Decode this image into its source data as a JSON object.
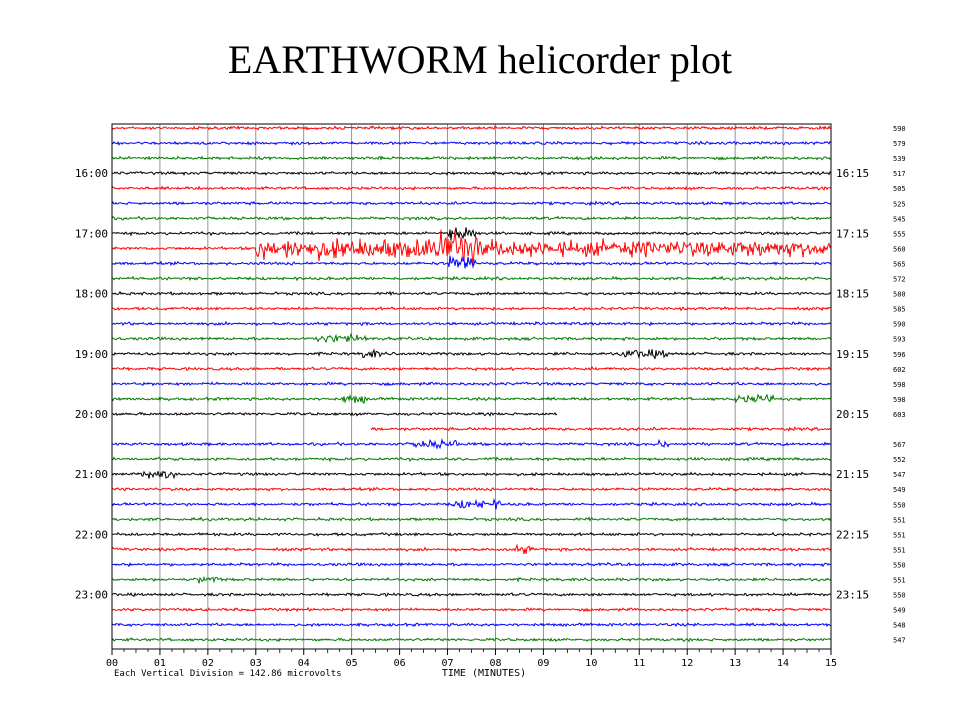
{
  "slide": {
    "title": "EARTHWORM helicorder plot"
  },
  "chart_data": {
    "type": "line",
    "title": "",
    "xlabel": "TIME (MINUTES)",
    "ylabel": "",
    "xlim": [
      0,
      15
    ],
    "x_ticks": [
      "00",
      "01",
      "02",
      "03",
      "04",
      "05",
      "06",
      "07",
      "08",
      "09",
      "10",
      "11",
      "12",
      "13",
      "14",
      "15"
    ],
    "left_hour_labels": [
      "16:00",
      "17:00",
      "18:00",
      "19:00",
      "20:00",
      "21:00",
      "22:00",
      "23:00"
    ],
    "right_hour_labels": [
      "16:15",
      "17:15",
      "18:15",
      "19:15",
      "20:15",
      "21:15",
      "22:15",
      "23:15"
    ],
    "scale_note": "Each Vertical Division =  142.86 microvolts",
    "trace_colors": [
      "#ff0000",
      "#0000ff",
      "#007a00",
      "#000000"
    ],
    "line_count": 35,
    "gap_start_minute": 9.3,
    "gap_end_minute": 5.4,
    "right_values": [
      "590",
      "579",
      "539",
      "517",
      "505",
      "525",
      "545",
      "555",
      "560",
      "565",
      "572",
      "580",
      "585",
      "590",
      "593",
      "596",
      "602",
      "598",
      "598",
      "603",
      "",
      "567",
      "552",
      "547",
      "549",
      "550",
      "551",
      "551",
      "551",
      "550",
      "551",
      "550",
      "549",
      "548",
      "547"
    ],
    "events": [
      {
        "line": 8,
        "start_minute": 3.0,
        "end_minute": 15.0,
        "intensity": "strong"
      },
      {
        "line": 7,
        "start_minute": 7.0,
        "end_minute": 7.6,
        "intensity": "moderate"
      },
      {
        "line": 9,
        "start_minute": 7.0,
        "end_minute": 7.6,
        "intensity": "moderate"
      },
      {
        "line": 15,
        "start_minute": 10.6,
        "end_minute": 11.6,
        "intensity": "small"
      },
      {
        "line": 15,
        "start_minute": 5.2,
        "end_minute": 5.6,
        "intensity": "small"
      },
      {
        "line": 18,
        "start_minute": 13.0,
        "end_minute": 13.8,
        "intensity": "small"
      },
      {
        "line": 18,
        "start_minute": 4.8,
        "end_minute": 5.3,
        "intensity": "small"
      },
      {
        "line": 14,
        "start_minute": 4.2,
        "end_minute": 5.3,
        "intensity": "small"
      },
      {
        "line": 21,
        "start_minute": 6.3,
        "end_minute": 7.2,
        "intensity": "small"
      },
      {
        "line": 21,
        "start_minute": 11.4,
        "end_minute": 11.6,
        "intensity": "small"
      },
      {
        "line": 23,
        "start_minute": 0.6,
        "end_minute": 1.3,
        "intensity": "small"
      },
      {
        "line": 25,
        "start_minute": 7.1,
        "end_minute": 8.1,
        "intensity": "small"
      },
      {
        "line": 28,
        "start_minute": 8.4,
        "end_minute": 8.8,
        "intensity": "small"
      },
      {
        "line": 30,
        "start_minute": 1.8,
        "end_minute": 2.2,
        "intensity": "small"
      }
    ]
  }
}
